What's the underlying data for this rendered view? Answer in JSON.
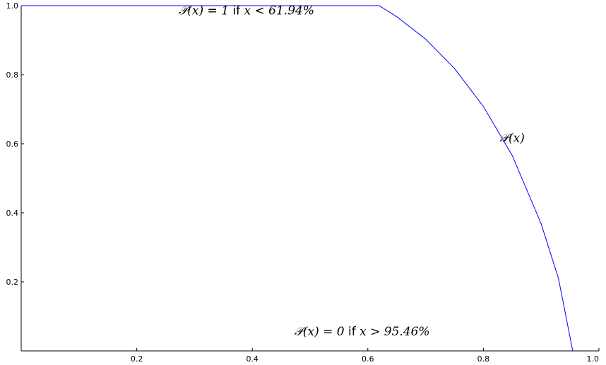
{
  "chart_data": {
    "type": "line",
    "title": "",
    "xlabel": "",
    "ylabel": "",
    "xlim": [
      0.0,
      1.0
    ],
    "ylim": [
      0.0,
      1.0
    ],
    "grid": false,
    "x_ticks": [
      {
        "value": 0.2,
        "label": "0.2"
      },
      {
        "value": 0.4,
        "label": "0.4"
      },
      {
        "value": 0.6,
        "label": "0.6"
      },
      {
        "value": 0.8,
        "label": "0.8"
      },
      {
        "value": 1.0,
        "label": "1.0"
      }
    ],
    "y_ticks": [
      {
        "value": 0.2,
        "label": "0.2"
      },
      {
        "value": 0.4,
        "label": "0.4"
      },
      {
        "value": 0.6,
        "label": "0.6"
      },
      {
        "value": 0.8,
        "label": "0.8"
      },
      {
        "value": 1.0,
        "label": "1.0"
      }
    ],
    "series": [
      {
        "color": "#0000ff",
        "x": [
          0.0,
          0.6194,
          0.65,
          0.7,
          0.75,
          0.8,
          0.85,
          0.9,
          0.93,
          0.9546
        ],
        "y": [
          1.0,
          1.0,
          0.968,
          0.903,
          0.818,
          0.708,
          0.566,
          0.368,
          0.21,
          0.0
        ]
      }
    ],
    "annotations": [
      {
        "x": 0.39,
        "y": 0.975,
        "math_left": "𝒫(x) = 1",
        "word": "if",
        "math_right": "x < 61.94%"
      },
      {
        "x": 0.85,
        "y": 0.605,
        "math_left": "𝒫(x)",
        "word": "",
        "math_right": ""
      },
      {
        "x": 0.59,
        "y": 0.045,
        "math_left": "𝒫(x) = 0",
        "word": "if",
        "math_right": "x > 95.46%"
      }
    ]
  }
}
